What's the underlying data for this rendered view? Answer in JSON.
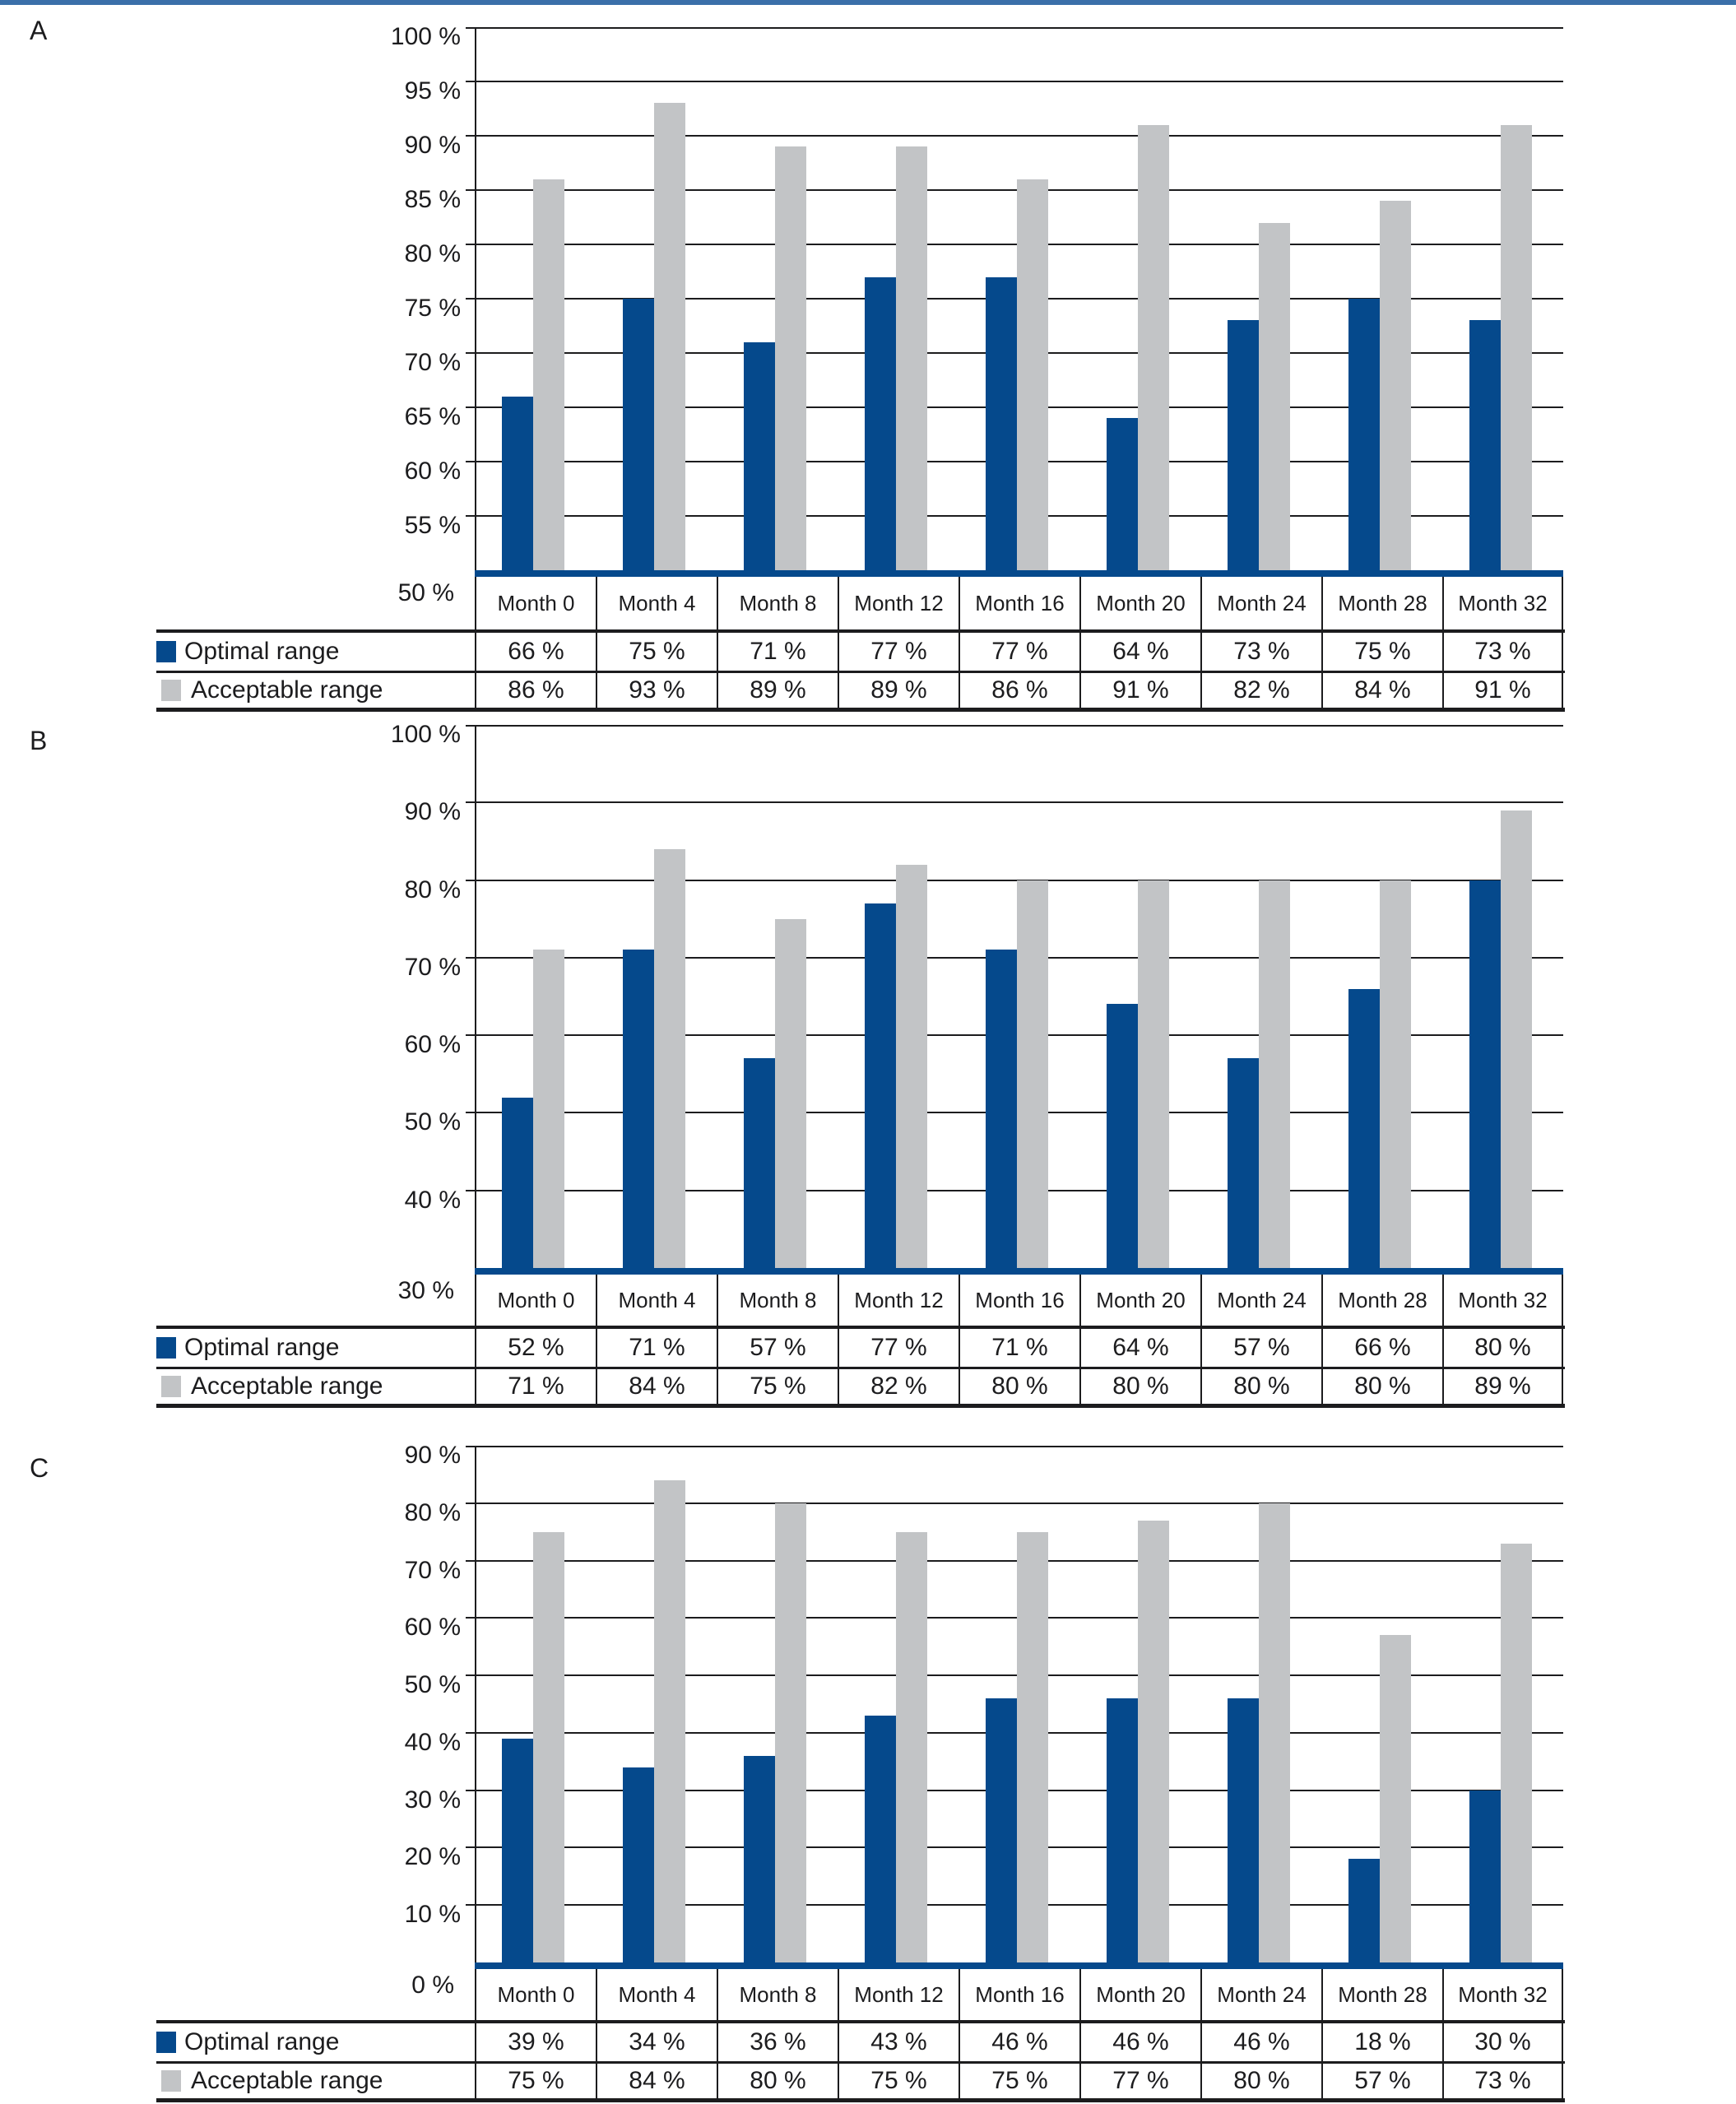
{
  "page": {
    "top_bar_color": "#3b6fa9",
    "background_color": "#ffffff",
    "line_color": "#1c1c1e"
  },
  "colors": {
    "optimal": "#05498c",
    "acceptable": "#c2c4c6",
    "axis_baseline": "#05498c"
  },
  "legend": {
    "optimal": "Optimal range",
    "acceptable": "Acceptable range"
  },
  "chart_data": [
    {
      "panel": "A",
      "type": "bar",
      "categories": [
        "Month 0",
        "Month 4",
        "Month 8",
        "Month 12",
        "Month 16",
        "Month 20",
        "Month 24",
        "Month 28",
        "Month 32"
      ],
      "series": [
        {
          "name": "Optimal range",
          "color": "#05498c",
          "values": [
            66,
            75,
            71,
            77,
            77,
            64,
            73,
            75,
            73
          ]
        },
        {
          "name": "Acceptable range",
          "color": "#c2c4c6",
          "values": [
            86,
            93,
            89,
            89,
            86,
            91,
            82,
            84,
            91
          ]
        }
      ],
      "ylim": [
        50,
        100
      ],
      "ytick_step": 5,
      "yticks": [
        100,
        95,
        90,
        85,
        80,
        75,
        70,
        65,
        60,
        55,
        50
      ],
      "tick_format": "{v} %",
      "grid": true,
      "legend_position": "table-left"
    },
    {
      "panel": "B",
      "type": "bar",
      "categories": [
        "Month 0",
        "Month 4",
        "Month 8",
        "Month 12",
        "Month 16",
        "Month 20",
        "Month 24",
        "Month 28",
        "Month 32"
      ],
      "series": [
        {
          "name": "Optimal range",
          "color": "#05498c",
          "values": [
            52,
            71,
            57,
            77,
            71,
            64,
            57,
            66,
            80
          ]
        },
        {
          "name": "Acceptable range",
          "color": "#c2c4c6",
          "values": [
            71,
            84,
            75,
            82,
            80,
            80,
            80,
            80,
            89
          ]
        }
      ],
      "ylim": [
        30,
        100
      ],
      "ytick_step": 10,
      "yticks": [
        100,
        90,
        80,
        70,
        60,
        50,
        40,
        30
      ],
      "tick_format": "{v} %",
      "grid": true,
      "legend_position": "table-left"
    },
    {
      "panel": "C",
      "type": "bar",
      "categories": [
        "Month 0",
        "Month 4",
        "Month 8",
        "Month 12",
        "Month 16",
        "Month 20",
        "Month 24",
        "Month 28",
        "Month 32"
      ],
      "series": [
        {
          "name": "Optimal range",
          "color": "#05498c",
          "values": [
            39,
            34,
            36,
            43,
            46,
            46,
            46,
            18,
            30
          ]
        },
        {
          "name": "Acceptable range",
          "color": "#c2c4c6",
          "values": [
            75,
            84,
            80,
            75,
            75,
            77,
            80,
            57,
            73
          ]
        }
      ],
      "ylim": [
        0,
        90
      ],
      "ytick_step": 10,
      "yticks": [
        90,
        80,
        70,
        60,
        50,
        40,
        30,
        20,
        10,
        0
      ],
      "tick_format": "{v} %",
      "grid": true,
      "legend_position": "table-left"
    }
  ]
}
